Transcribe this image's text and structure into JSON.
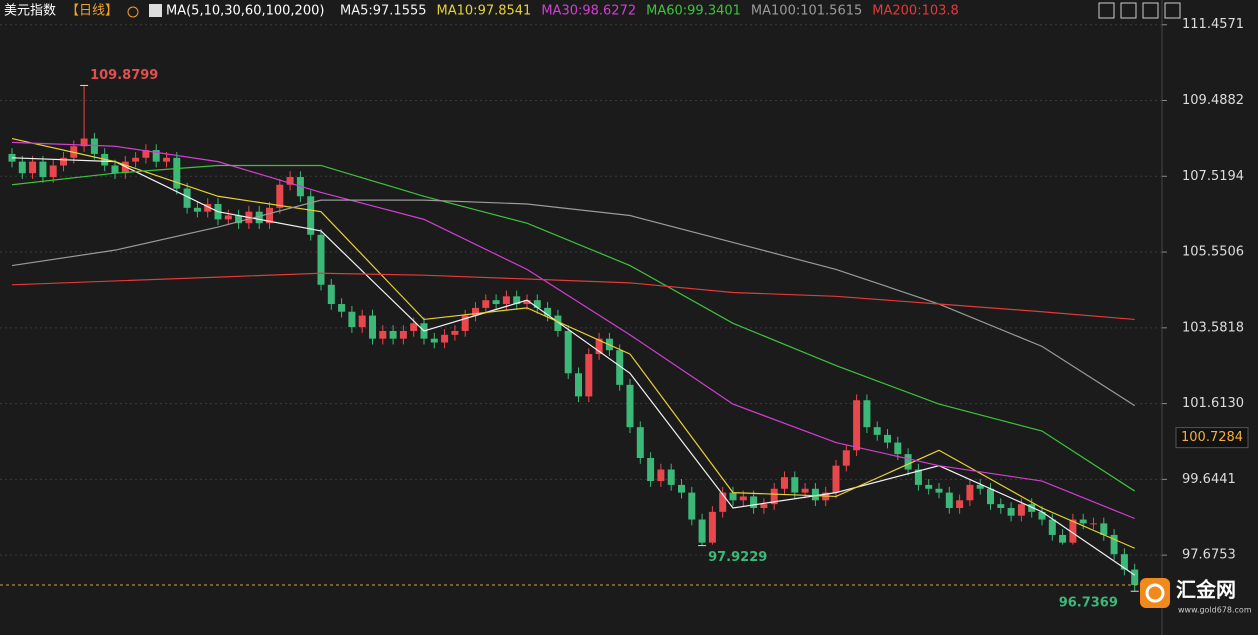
{
  "chart_data": {
    "type": "candlestick",
    "title": "美元指数",
    "period": "【日线】",
    "ma_label": "MA(5,10,30,60,100,200)",
    "up_color": "#e8474c",
    "down_color": "#3cb878",
    "candles": {
      "open": [
        108.1,
        107.9,
        107.6,
        107.9,
        107.5,
        107.8,
        108.0,
        108.3,
        108.5,
        108.1,
        107.8,
        107.6,
        107.9,
        108.0,
        108.2,
        107.9,
        108.0,
        107.2,
        106.7,
        106.6,
        106.8,
        106.4,
        106.5,
        106.3,
        106.6,
        106.3,
        106.7,
        107.3,
        107.5,
        107.0,
        106.0,
        104.7,
        104.2,
        104.0,
        103.6,
        103.9,
        103.3,
        103.5,
        103.3,
        103.5,
        103.7,
        103.3,
        103.2,
        103.4,
        103.5,
        103.9,
        104.1,
        104.3,
        104.2,
        104.4,
        104.2,
        104.3,
        104.1,
        103.9,
        103.5,
        102.4,
        101.8,
        102.9,
        103.3,
        103.0,
        102.1,
        101.0,
        100.2,
        99.6,
        99.9,
        99.5,
        99.3,
        98.6,
        98.0,
        98.8,
        99.3,
        99.1,
        99.2,
        98.9,
        99.0,
        99.4,
        99.7,
        99.3,
        99.4,
        99.1,
        99.3,
        100.0,
        100.4,
        101.7,
        101.0,
        100.8,
        100.6,
        100.3,
        99.9,
        99.5,
        99.4,
        99.3,
        98.9,
        99.1,
        99.5,
        99.4,
        99.0,
        98.9,
        98.7,
        99.0,
        98.8,
        98.6,
        98.2,
        98.0,
        98.6,
        98.5,
        98.5,
        98.2,
        97.7,
        97.3
      ],
      "high": [
        108.25,
        108.05,
        108.05,
        108.05,
        107.95,
        108.15,
        108.45,
        109.8799,
        108.65,
        108.25,
        107.95,
        108.05,
        108.15,
        108.35,
        108.35,
        108.15,
        108.15,
        107.35,
        106.85,
        106.95,
        106.95,
        106.65,
        106.65,
        106.75,
        106.75,
        106.85,
        107.45,
        107.65,
        107.65,
        107.15,
        106.15,
        104.85,
        104.35,
        104.15,
        104.05,
        104.05,
        103.65,
        103.65,
        103.65,
        103.85,
        103.85,
        103.45,
        103.55,
        103.65,
        104.05,
        104.25,
        104.45,
        104.45,
        104.55,
        104.55,
        104.45,
        104.45,
        104.25,
        104.05,
        103.65,
        102.55,
        103.05,
        103.45,
        103.45,
        103.15,
        102.25,
        101.15,
        100.35,
        100.05,
        100.05,
        99.65,
        99.45,
        98.75,
        98.95,
        99.45,
        99.45,
        99.35,
        99.35,
        99.15,
        99.55,
        99.85,
        99.85,
        99.55,
        99.55,
        99.45,
        100.15,
        100.55,
        101.85,
        101.85,
        101.15,
        100.95,
        100.75,
        100.45,
        100.05,
        99.65,
        99.55,
        99.45,
        99.25,
        99.65,
        99.65,
        99.55,
        99.15,
        99.05,
        99.15,
        99.15,
        98.95,
        98.75,
        98.35,
        98.75,
        98.75,
        98.65,
        98.65,
        98.35,
        97.85,
        97.45
      ],
      "low": [
        107.75,
        107.45,
        107.45,
        107.35,
        107.35,
        107.65,
        107.85,
        108.15,
        107.95,
        107.65,
        107.45,
        107.45,
        107.75,
        107.85,
        107.75,
        107.75,
        107.05,
        106.55,
        106.45,
        106.45,
        106.25,
        106.25,
        106.15,
        106.15,
        106.15,
        106.15,
        106.55,
        107.15,
        106.85,
        105.85,
        104.55,
        104.05,
        103.85,
        103.45,
        103.45,
        103.15,
        103.15,
        103.15,
        103.15,
        103.35,
        103.15,
        103.05,
        103.05,
        103.25,
        103.35,
        103.75,
        103.95,
        104.05,
        104.05,
        104.05,
        104.05,
        103.95,
        103.75,
        103.35,
        102.25,
        101.65,
        101.65,
        102.75,
        102.85,
        101.95,
        100.85,
        100.05,
        99.45,
        99.45,
        99.35,
        99.15,
        98.45,
        97.9229,
        97.95,
        98.65,
        98.95,
        98.95,
        98.75,
        98.75,
        98.85,
        99.25,
        99.15,
        99.15,
        98.95,
        98.95,
        99.15,
        99.85,
        100.25,
        100.85,
        100.65,
        100.45,
        100.15,
        99.75,
        99.35,
        99.25,
        99.15,
        98.75,
        98.75,
        98.95,
        99.25,
        98.85,
        98.75,
        98.55,
        98.55,
        98.65,
        98.45,
        98.05,
        97.95,
        97.95,
        98.35,
        98.35,
        98.05,
        97.55,
        97.15,
        96.7369
      ],
      "close": [
        107.9,
        107.6,
        107.9,
        107.5,
        107.8,
        108.0,
        108.3,
        108.5,
        108.1,
        107.8,
        107.6,
        107.9,
        108.0,
        108.2,
        107.9,
        108.0,
        107.2,
        106.7,
        106.6,
        106.8,
        106.4,
        106.5,
        106.3,
        106.6,
        106.3,
        106.7,
        107.3,
        107.5,
        107.0,
        106.0,
        104.7,
        104.2,
        104.0,
        103.6,
        103.9,
        103.3,
        103.5,
        103.3,
        103.5,
        103.7,
        103.3,
        103.2,
        103.4,
        103.5,
        103.9,
        104.1,
        104.3,
        104.2,
        104.4,
        104.2,
        104.3,
        104.1,
        103.9,
        103.5,
        102.4,
        101.8,
        102.9,
        103.3,
        103.0,
        102.1,
        101.0,
        100.2,
        99.6,
        99.9,
        99.5,
        99.3,
        98.6,
        98.0,
        98.8,
        99.3,
        99.1,
        99.2,
        98.9,
        99.0,
        99.4,
        99.7,
        99.3,
        99.4,
        99.1,
        99.3,
        100.0,
        100.4,
        101.7,
        101.0,
        100.8,
        100.6,
        100.3,
        99.9,
        99.5,
        99.4,
        99.3,
        98.9,
        99.1,
        99.5,
        99.4,
        99.0,
        98.9,
        98.7,
        99.0,
        98.8,
        98.6,
        98.2,
        98.0,
        98.6,
        98.5,
        98.5,
        98.2,
        97.7,
        97.3,
        96.9
      ]
    },
    "lines": [
      {
        "name": "MA5:97.1555",
        "color": "#f2f2f2",
        "x": [
          0,
          10,
          20,
          30,
          40,
          50,
          60,
          70,
          80,
          90,
          100,
          109
        ],
        "values": [
          108.0,
          107.9,
          106.6,
          106.1,
          103.5,
          104.3,
          102.4,
          98.9,
          99.3,
          100.0,
          98.8,
          97.1555
        ]
      },
      {
        "name": "MA10:97.8541",
        "color": "#e6d235",
        "x": [
          0,
          10,
          20,
          30,
          40,
          50,
          60,
          70,
          80,
          90,
          100,
          109
        ],
        "values": [
          108.5,
          107.9,
          107.0,
          106.6,
          103.8,
          104.1,
          102.9,
          99.3,
          99.2,
          100.4,
          98.9,
          97.8541
        ]
      },
      {
        "name": "MA30:98.6272",
        "color": "#d23fd2",
        "x": [
          0,
          10,
          20,
          30,
          40,
          50,
          60,
          70,
          80,
          90,
          100,
          109
        ],
        "values": [
          108.4,
          108.3,
          107.9,
          107.1,
          106.4,
          105.1,
          103.4,
          101.6,
          100.6,
          100.0,
          99.6,
          98.6272
        ]
      },
      {
        "name": "MA60:99.3401",
        "color": "#3ec23e",
        "x": [
          0,
          10,
          20,
          30,
          40,
          50,
          60,
          70,
          80,
          90,
          100,
          109
        ],
        "values": [
          107.3,
          107.6,
          107.8,
          107.8,
          107.0,
          106.3,
          105.2,
          103.7,
          102.6,
          101.6,
          100.9,
          99.3401
        ]
      },
      {
        "name": "MA100:101.5615",
        "color": "#9a9a9a",
        "x": [
          0,
          10,
          20,
          30,
          40,
          50,
          60,
          70,
          80,
          90,
          100,
          109
        ],
        "values": [
          105.2,
          105.6,
          106.2,
          106.9,
          106.9,
          106.8,
          106.5,
          105.8,
          105.1,
          104.2,
          103.1,
          101.5615
        ]
      },
      {
        "name": "MA200:103.8",
        "color": "#e03a3a",
        "x": [
          0,
          10,
          20,
          30,
          40,
          50,
          60,
          70,
          80,
          90,
          100,
          109
        ],
        "values": [
          104.7,
          104.8,
          104.9,
          105.0,
          104.95,
          104.85,
          104.75,
          104.5,
          104.4,
          104.2,
          104.0,
          103.8
        ]
      }
    ],
    "ylim": [
      95.6,
      112.1
    ],
    "yticks": [
      111.4571,
      109.4882,
      107.5194,
      105.5506,
      103.5818,
      {
        "value": 101.613,
        "label": "101.6130"
      },
      99.6441,
      97.6753
    ],
    "grid": true,
    "marker_price": 100.7284,
    "high_label": 109.8799,
    "low_labels": [
      97.9229,
      96.7369
    ]
  },
  "watermark": {
    "name": "汇金网",
    "url": "www.gold678.com"
  }
}
